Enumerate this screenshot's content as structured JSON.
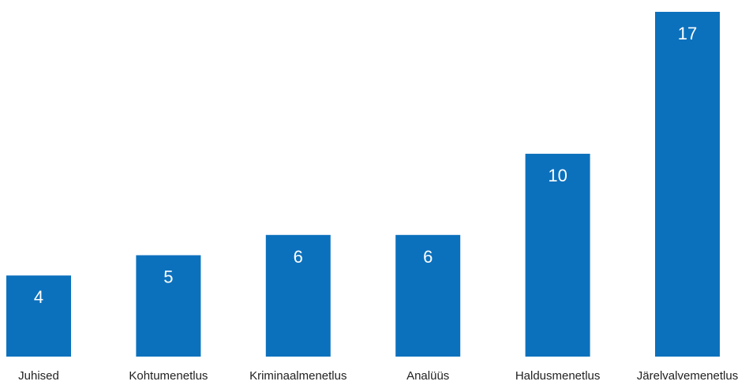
{
  "colors": {
    "bar": "#0C71BD",
    "value_label": "#ffffff",
    "category_label": "#222222",
    "background": "#ffffff"
  },
  "chart_data": {
    "type": "bar",
    "categories": [
      "Juhised",
      "Kohtumenetlus",
      "Kriminaalmenetlus",
      "Analüüs",
      "Haldusmenetlus",
      "Järelvalvemenetlus"
    ],
    "values": [
      4,
      5,
      6,
      6,
      10,
      17
    ],
    "title": "",
    "xlabel": "",
    "ylabel": "",
    "ylim": [
      0,
      17
    ],
    "grid": false,
    "legend": "none",
    "data_labels": "inside-top"
  }
}
